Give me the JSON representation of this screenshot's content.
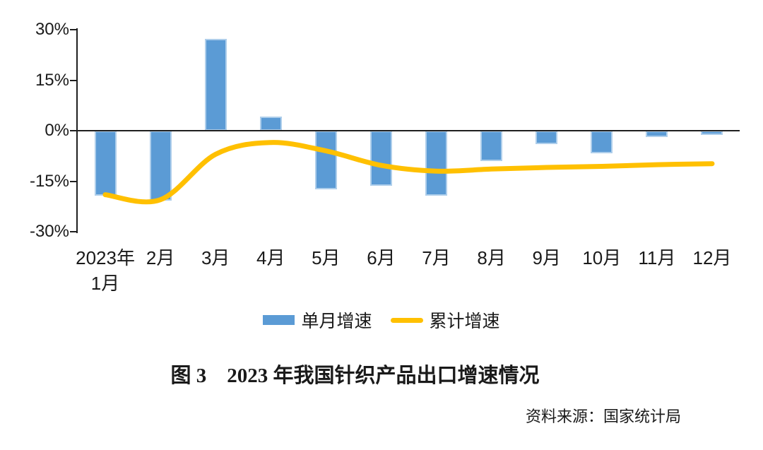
{
  "figure": {
    "title": "图 3　2023 年我国针织产品出口增速情况",
    "source": "资料来源：国家统计局"
  },
  "legend": {
    "items": [
      {
        "label": "单月增速",
        "swatch": "bar-swatch",
        "color": "#5B9BD5"
      },
      {
        "label": "累计增速",
        "swatch": "line-swatch",
        "color": "#FFC000"
      }
    ]
  },
  "chart_data": {
    "type": "combo",
    "title": "",
    "xlabel": "",
    "ylabel": "",
    "categories": [
      "2023年\n1月",
      "2月",
      "3月",
      "4月",
      "5月",
      "6月",
      "7月",
      "8月",
      "9月",
      "10月",
      "11月",
      "12月"
    ],
    "series": [
      {
        "name": "单月增速",
        "type": "bar",
        "color": "#5B9BD5",
        "values": [
          -19.4,
          -20.8,
          27.3,
          4.3,
          -17.5,
          -16.4,
          -19.4,
          -9.1,
          -3.9,
          -6.8,
          -1.9,
          -1.3
        ]
      },
      {
        "name": "累计增速",
        "type": "line",
        "color": "#FFC000",
        "values": [
          -19.0,
          -20.5,
          -7.0,
          -3.5,
          -6.0,
          -10.3,
          -12.0,
          -11.4,
          -10.9,
          -10.6,
          -10.1,
          -9.8
        ]
      }
    ],
    "ylim": [
      -30,
      30
    ],
    "y_ticks": [
      {
        "value": 30,
        "label": "30%"
      },
      {
        "value": 15,
        "label": "15%"
      },
      {
        "value": 0,
        "label": "0%"
      },
      {
        "value": -15,
        "label": "-15%"
      },
      {
        "value": -30,
        "label": "-30%"
      }
    ],
    "grid": false,
    "legend_position": "bottom",
    "axis_color": "#1f1f1f"
  }
}
